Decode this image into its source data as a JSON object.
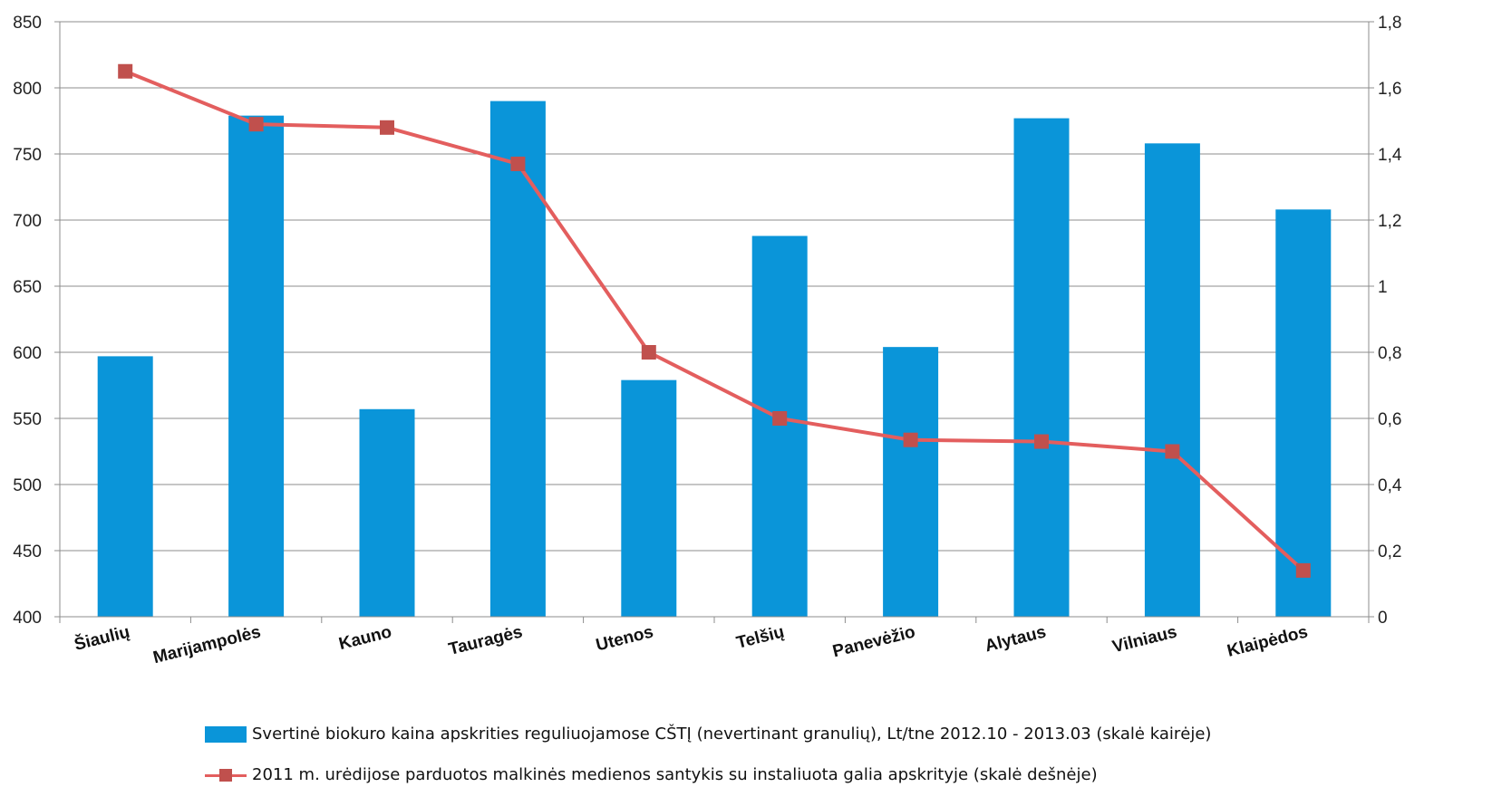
{
  "colors": {
    "bar": "#0A95D9",
    "line": "#E35E5E",
    "marker": "#C0504D",
    "grid": "#8C8C8C"
  },
  "chart_data": {
    "type": "bar",
    "categories": [
      "Šiaulių",
      "Marijampolės",
      "Kauno",
      "Tauragės",
      "Utenos",
      "Telšių",
      "Panevėžio",
      "Alytaus",
      "Vilniaus",
      "Klaipėdos"
    ],
    "series": [
      {
        "name": "Svertinė biokuro kaina apskrities reguliuojamose CŠTĮ (nevertinant granulių),  Lt/tne 2012.10 - 2013.03 (skalė kairėje)",
        "type": "bar",
        "axis": "left",
        "values": [
          597,
          779,
          557,
          790,
          579,
          688,
          604,
          777,
          758,
          708
        ]
      },
      {
        "name": "2011 m. urėdijose parduotos malkinės medienos santykis su instaliuota galia apskrityje (skalė dešnėje)",
        "type": "line",
        "axis": "right",
        "marker": "square",
        "values": [
          1.65,
          1.49,
          1.48,
          1.37,
          0.8,
          0.6,
          0.535,
          0.53,
          0.5,
          0.14
        ]
      }
    ],
    "ylim_left": [
      400,
      850
    ],
    "yticks_left": [
      "400",
      "450",
      "500",
      "550",
      "600",
      "650",
      "700",
      "750",
      "800",
      "850"
    ],
    "ylim_right": [
      0,
      1.8
    ],
    "yticks_right": [
      "0",
      "0,2",
      "0,4",
      "0,6",
      "0,8",
      "1",
      "1,2",
      "1,4",
      "1,6",
      "1,8"
    ],
    "grid": true,
    "legend_position": "bottom"
  }
}
